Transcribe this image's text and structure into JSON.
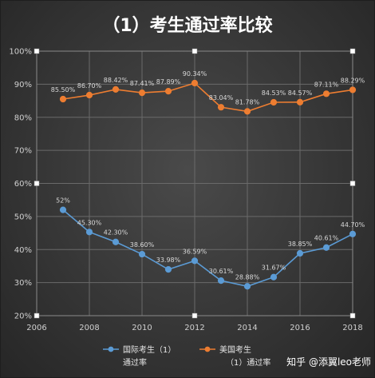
{
  "title": "（1）考生通过率比较",
  "watermark": "知乎 @添翼leo老师",
  "chart_data": {
    "type": "line",
    "x": [
      2007,
      2008,
      2009,
      2010,
      2011,
      2012,
      2013,
      2014,
      2015,
      2016,
      2017,
      2018
    ],
    "xlim": [
      2006,
      2018
    ],
    "xticks": [
      "2006",
      "2008",
      "2010",
      "2012",
      "2014",
      "2016",
      "2018"
    ],
    "ylim": [
      20,
      100
    ],
    "yticks": [
      "20%",
      "30%",
      "40%",
      "50%",
      "60%",
      "70%",
      "80%",
      "90%",
      "100%"
    ],
    "grid": true,
    "legend_position": "bottom",
    "series": [
      {
        "name": "国际考生（1）通过率",
        "legend_lines": [
          "国际考生（1）",
          "通过率"
        ],
        "color": "#5b9bd5",
        "values": [
          52,
          45.3,
          42.3,
          38.6,
          33.98,
          36.59,
          30.61,
          28.88,
          31.67,
          38.85,
          40.61,
          44.7
        ],
        "labels": [
          "52%",
          "45.30%",
          "42.30%",
          "38.60%",
          "33.98%",
          "36.59%",
          "30.61%",
          "28.88%",
          "31.67%",
          "38.85%",
          "40.61%",
          "44.70%"
        ]
      },
      {
        "name": "美国考生（1）通过率",
        "legend_lines": [
          "美国考生",
          "（1）通过率"
        ],
        "color": "#ed7d31",
        "values": [
          85.5,
          86.7,
          88.42,
          87.41,
          87.89,
          90.34,
          83.04,
          81.78,
          84.53,
          84.57,
          87.11,
          88.29
        ],
        "labels": [
          "85.50%",
          "86.70%",
          "88.42%",
          "87.41%",
          "87.89%",
          "90.34%",
          "83.04%",
          "81.78%",
          "84.53%",
          "84.57%",
          "87.11%",
          "88.29%"
        ]
      }
    ]
  }
}
